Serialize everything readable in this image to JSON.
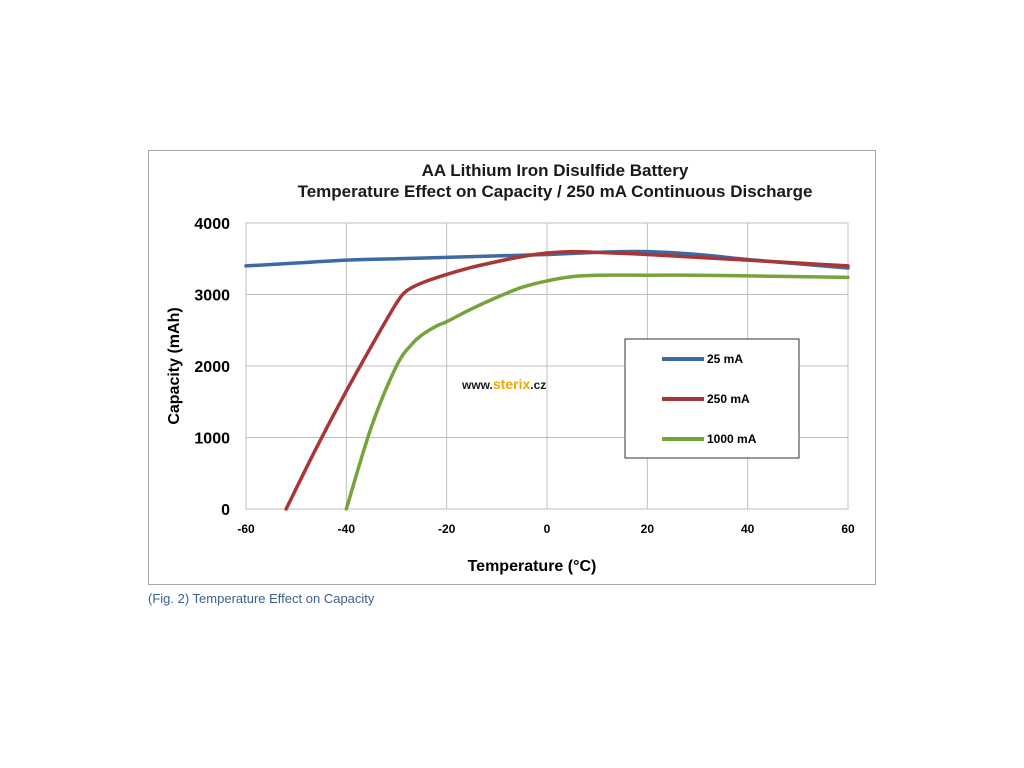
{
  "caption": "(Fig. 2) Temperature Effect on Capacity",
  "watermark": {
    "prefix": "www.",
    "brand": "sterix",
    "suffix": ".cz",
    "brand_color": "#f2a800"
  },
  "chart_data": {
    "type": "line",
    "title": [
      "AA Lithium Iron Disulfide Battery",
      "Temperature Effect on Capacity / 250 mA Continuous Discharge"
    ],
    "xlabel": "Temperature (°C)",
    "ylabel": "Capacity (mAh)",
    "xlim": [
      -60,
      60
    ],
    "ylim": [
      0,
      4000
    ],
    "xticks": [
      -60,
      -40,
      -20,
      0,
      20,
      40,
      60
    ],
    "xtick_labels": [
      "-60",
      "-40",
      "-20",
      "0",
      "20",
      "40",
      "60"
    ],
    "yticks": [
      0,
      1000,
      2000,
      3000,
      4000
    ],
    "ytick_labels": [
      "0",
      "1000",
      "2000",
      "3000",
      "4000"
    ],
    "grid": true,
    "legend_position": "center-right",
    "series": [
      {
        "name": "25 mA",
        "color": "#3d6aa3",
        "x": [
          -60,
          -50,
          -40,
          -30,
          -20,
          -10,
          0,
          10,
          20,
          30,
          40,
          50,
          60
        ],
        "y": [
          3400,
          3440,
          3480,
          3500,
          3520,
          3540,
          3560,
          3590,
          3600,
          3560,
          3490,
          3430,
          3370
        ]
      },
      {
        "name": "250 mA",
        "color": "#a83636",
        "x": [
          -52,
          -46,
          -40,
          -34,
          -30,
          -28,
          -25,
          -20,
          -15,
          -10,
          -5,
          0,
          5,
          10,
          20,
          30,
          40,
          50,
          60
        ],
        "y": [
          0,
          850,
          1650,
          2400,
          2880,
          3050,
          3160,
          3280,
          3380,
          3460,
          3530,
          3580,
          3600,
          3590,
          3560,
          3520,
          3480,
          3440,
          3400
        ]
      },
      {
        "name": "1000 mA",
        "color": "#76a33a",
        "x": [
          -40,
          -35,
          -30,
          -27,
          -25,
          -22,
          -20,
          -15,
          -10,
          -5,
          0,
          5,
          10,
          20,
          30,
          40,
          50,
          60
        ],
        "y": [
          0,
          1150,
          2000,
          2300,
          2430,
          2560,
          2620,
          2800,
          2960,
          3100,
          3190,
          3250,
          3270,
          3270,
          3270,
          3260,
          3250,
          3240
        ]
      }
    ]
  }
}
